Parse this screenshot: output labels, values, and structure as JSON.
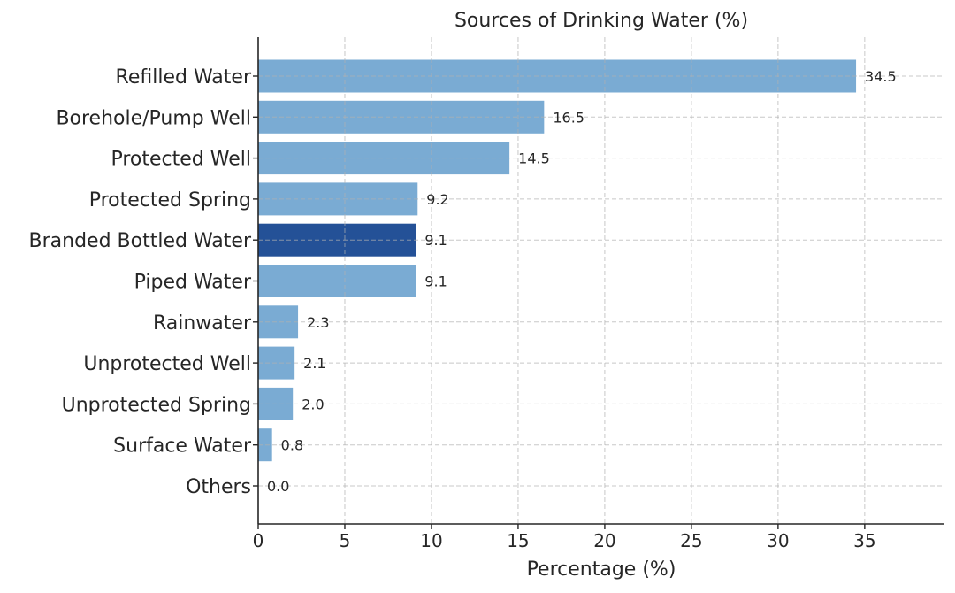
{
  "chart_data": {
    "type": "bar",
    "orientation": "horizontal",
    "title": "Sources of Drinking Water (%)",
    "xlabel": "Percentage (%)",
    "ylabel": "",
    "xlim": [
      0,
      39.6
    ],
    "xticks": [
      0,
      5,
      10,
      15,
      20,
      25,
      30,
      35
    ],
    "grid": true,
    "categories": [
      "Refilled Water",
      "Borehole/Pump Well",
      "Protected Well",
      "Protected Spring",
      "Branded Bottled Water",
      "Piped Water",
      "Rainwater",
      "Unprotected Well",
      "Unprotected Spring",
      "Surface Water",
      "Others"
    ],
    "values": [
      34.5,
      16.5,
      14.5,
      9.2,
      9.1,
      9.1,
      2.3,
      2.1,
      2.0,
      0.8,
      0.0
    ],
    "value_labels": [
      "34.5",
      "16.5",
      "14.5",
      "9.2",
      "9.1",
      "9.1",
      "2.3",
      "2.1",
      "2.0",
      "0.8",
      "0.0"
    ],
    "highlight_index": 4,
    "colors": {
      "default": "#7aabd3",
      "highlight": "#245197"
    }
  }
}
